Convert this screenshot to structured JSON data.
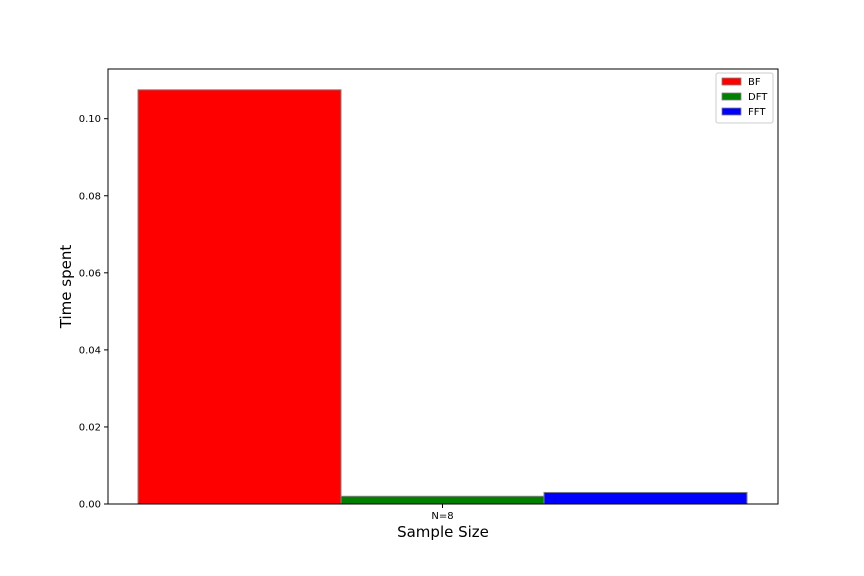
{
  "chart_data": {
    "type": "bar",
    "title": "",
    "xlabel": "Sample Size",
    "ylabel": "Time spent",
    "categories": [
      "N=8"
    ],
    "series": [
      {
        "name": "BF",
        "values": [
          0.1075
        ],
        "color": "#ff0000"
      },
      {
        "name": "DFT",
        "values": [
          0.002
        ],
        "color": "#008000"
      },
      {
        "name": "FFT",
        "values": [
          0.003
        ],
        "color": "#0000ff"
      }
    ],
    "ylim": [
      0,
      0.1129
    ],
    "yticks": [
      "0.00",
      "0.02",
      "0.04",
      "0.06",
      "0.08",
      "0.10"
    ],
    "ytick_values": [
      0,
      0.02,
      0.04,
      0.06,
      0.08,
      0.1
    ],
    "grid": false,
    "legend_position": "top-right",
    "bar_edge_color": "#808080"
  }
}
